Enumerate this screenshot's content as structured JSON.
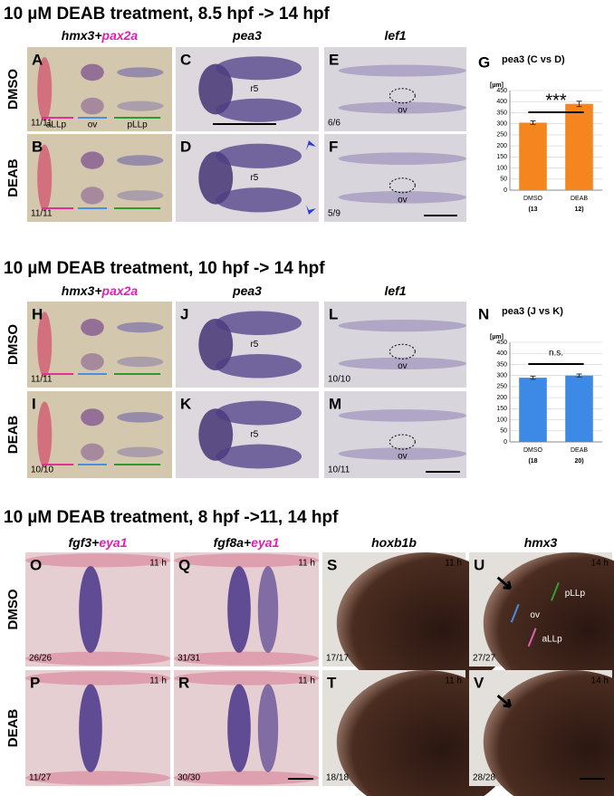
{
  "sections": [
    {
      "title": "10 µM DEAB treatment, 8.5 hpf -> 14 hpf",
      "rows": [
        "DMSO",
        "DEAB"
      ],
      "columns": [
        {
          "gene": "hmx3+",
          "accent": "pax2a"
        },
        {
          "gene": "pea3"
        },
        {
          "gene": "lef1"
        }
      ],
      "panels": [
        [
          {
            "letter": "A",
            "count": "11/11",
            "labels": [
              "aLLp",
              "ov",
              "pLLp"
            ]
          },
          {
            "letter": "C",
            "labels": [
              "r5"
            ]
          },
          {
            "letter": "E",
            "count": "6/6",
            "labels": [
              "ov"
            ]
          }
        ],
        [
          {
            "letter": "B",
            "count": "11/11"
          },
          {
            "letter": "D",
            "labels": [
              "r5"
            ]
          },
          {
            "letter": "F",
            "count": "5/9",
            "labels": [
              "ov"
            ]
          }
        ]
      ]
    },
    {
      "title": "10 µM DEAB treatment, 10 hpf -> 14 hpf",
      "rows": [
        "DMSO",
        "DEAB"
      ],
      "columns": [
        {
          "gene": "hmx3+",
          "accent": "pax2a"
        },
        {
          "gene": "pea3"
        },
        {
          "gene": "lef1"
        }
      ],
      "panels": [
        [
          {
            "letter": "H",
            "count": "11/11"
          },
          {
            "letter": "J",
            "labels": [
              "r5"
            ]
          },
          {
            "letter": "L",
            "count": "10/10",
            "labels": [
              "ov"
            ]
          }
        ],
        [
          {
            "letter": "I",
            "count": "10/10"
          },
          {
            "letter": "K",
            "labels": [
              "r5"
            ]
          },
          {
            "letter": "M",
            "count": "10/11",
            "labels": [
              "ov"
            ]
          }
        ]
      ]
    },
    {
      "title": "10 µM DEAB treatment, 8 hpf ->11, 14 hpf",
      "rows": [
        "DMSO",
        "DEAB"
      ],
      "columns": [
        {
          "gene": "fgf3+",
          "accent": "eya1"
        },
        {
          "gene": "fgf8a+",
          "accent": "eya1"
        },
        {
          "gene": "hoxb1b"
        },
        {
          "gene": "hmx3"
        }
      ],
      "panels": [
        [
          {
            "letter": "O",
            "time": "11 h",
            "count": "26/26"
          },
          {
            "letter": "Q",
            "time": "11 h",
            "count": "31/31"
          },
          {
            "letter": "S",
            "time": "11 h",
            "count": "17/17"
          },
          {
            "letter": "U",
            "time": "14 h",
            "count": "27/27",
            "labels": [
              "pLLp",
              "ov",
              "aLLp"
            ]
          }
        ],
        [
          {
            "letter": "P",
            "time": "11 h",
            "count": "11/27"
          },
          {
            "letter": "R",
            "time": "11 h",
            "count": "30/30"
          },
          {
            "letter": "T",
            "time": "11 h",
            "count": "18/18"
          },
          {
            "letter": "V",
            "time": "14 h",
            "count": "28/28"
          }
        ]
      ]
    }
  ],
  "chart_data": [
    {
      "type": "bar",
      "panel": "G",
      "title": "pea3 (C vs D)",
      "ylabel": "[µm]",
      "categories": [
        "DMSO",
        "DEAB"
      ],
      "category_notes": [
        "(13",
        "12)"
      ],
      "values": [
        305,
        390
      ],
      "errors": [
        8,
        12
      ],
      "color": "#f5861f",
      "ylim": [
        0,
        450
      ],
      "yticks": [
        0,
        50,
        100,
        150,
        200,
        250,
        300,
        350,
        400,
        450
      ],
      "annotation": "***"
    },
    {
      "type": "bar",
      "panel": "N",
      "title": "pea3 (J vs K)",
      "ylabel": "[µm]",
      "categories": [
        "DMSO",
        "DEAB"
      ],
      "category_notes": [
        "(18",
        "20)"
      ],
      "values": [
        290,
        300
      ],
      "errors": [
        7,
        7
      ],
      "color": "#3d8ae6",
      "ylim": [
        0,
        450
      ],
      "yticks": [
        0,
        50,
        100,
        150,
        200,
        250,
        300,
        350,
        400,
        450
      ],
      "annotation": "n.s."
    }
  ]
}
